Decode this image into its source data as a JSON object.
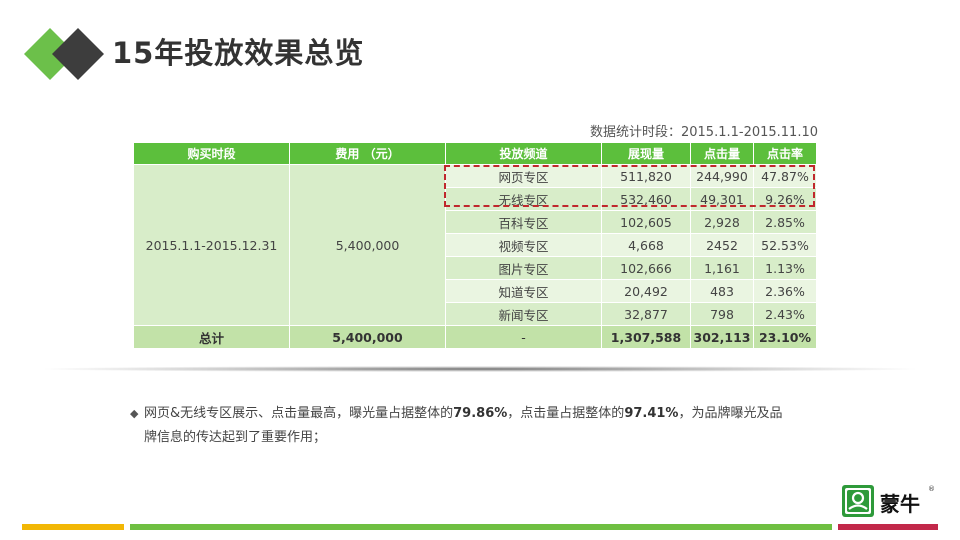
{
  "header": {
    "title": "15年投放效果总览",
    "stat_period": "数据统计时段：2015.1.1-2015.11.10"
  },
  "table": {
    "columns": [
      "购买时段",
      "费用 （元）",
      "投放频道",
      "展现量",
      "点击量",
      "点击率"
    ],
    "period": "2015.1.1-2015.12.31",
    "cost": "5,400,000",
    "rows": [
      {
        "channel": "网页专区",
        "impressions": "511,820",
        "clicks": "244,990",
        "ctr": "47.87%"
      },
      {
        "channel": "无线专区",
        "impressions": "532,460",
        "clicks": "49,301",
        "ctr": "9.26%"
      },
      {
        "channel": "百科专区",
        "impressions": "102,605",
        "clicks": "2,928",
        "ctr": "2.85%"
      },
      {
        "channel": "视频专区",
        "impressions": "4,668",
        "clicks": "2452",
        "ctr": "52.53%"
      },
      {
        "channel": "图片专区",
        "impressions": "102,666",
        "clicks": "1,161",
        "ctr": "1.13%"
      },
      {
        "channel": "知道专区",
        "impressions": "20,492",
        "clicks": "483",
        "ctr": "2.36%"
      },
      {
        "channel": "新闻专区",
        "impressions": "32,877",
        "clicks": "798",
        "ctr": "2.43%"
      }
    ],
    "total": {
      "label": "总计",
      "cost": "5,400,000",
      "channel": "-",
      "impressions": "1,307,588",
      "clicks": "302,113",
      "ctr": "23.10%"
    }
  },
  "note": {
    "bullet_icon": "◆",
    "part1": "网页&无线专区展示、点击量最高，曝光量占据整体的",
    "value1": "79.86%",
    "part2": "，点击量占据整体的",
    "value2": "97.41%",
    "part3": "，为品牌曝光及品",
    "part4": "牌信息的传达起到了重要作用；"
  },
  "brand": {
    "name": "蒙牛",
    "reg": "®",
    "icon": "mengniu-logo-icon"
  },
  "colors": {
    "header_green": "#5cbf3c",
    "row_light": "#eaf5e1",
    "row_dark": "#d8edc9",
    "total_row": "#c2e2a8",
    "highlight_red": "#c0282d",
    "bar_yellow": "#f2b705",
    "bar_green": "#6fbf42",
    "bar_red": "#c2284a"
  }
}
